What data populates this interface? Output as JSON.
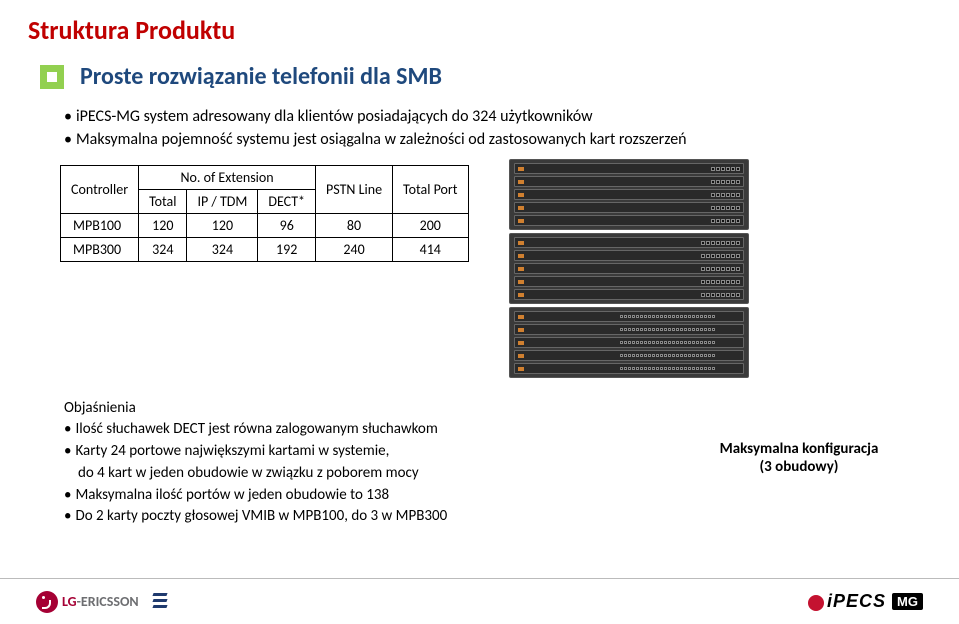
{
  "title": "Struktura Produktu",
  "subtitle": "Proste rozwiązanie telefonii dla SMB",
  "intro_bullets": [
    "iPECS-MG system adresowany dla klientów posiadających do 324 użytkowników",
    "Maksymalna pojemność systemu jest osiągalna w zależności od zastosowanych kart rozszerzeń"
  ],
  "table": {
    "headers": {
      "controller": "Controller",
      "noext": "No. of Extension",
      "total": "Total",
      "iptdm": "IP / TDM",
      "dect": "DECT*",
      "pstn": "PSTN Line",
      "totalport": "Total Port"
    },
    "rows": [
      {
        "name": "MPB100",
        "total": "120",
        "iptdm": "120",
        "dect": "96",
        "pstn": "80",
        "port": "200"
      },
      {
        "name": "MPB300",
        "total": "324",
        "iptdm": "324",
        "dect": "192",
        "pstn": "240",
        "port": "414"
      }
    ]
  },
  "explain_title": "Objaśnienia",
  "explain_items": [
    "Ilość słuchawek DECT jest równa zalogowanym słuchawkom",
    "Karty 24 portowe największymi kartami w systemie,",
    "Maksymalna ilość portów w jeden obudowie to 138",
    "Do 2 karty poczty głosowej VMIB w MPB100, do 3 w MPB300"
  ],
  "explain_sub": "do 4 kart w jeden obudowie w związku z poborem mocy",
  "caption_l1": "Maksymalna konfiguracja",
  "caption_l2": "(3 obudowy)",
  "footer": {
    "lg": "LG",
    "ericsson": "-ERICSSON",
    "right_prefix": "iPECS",
    "right_suffix": "MG"
  },
  "colors": {
    "title": "#c00000",
    "subtitle": "#1f497d",
    "bullet_square": "#92d050"
  }
}
